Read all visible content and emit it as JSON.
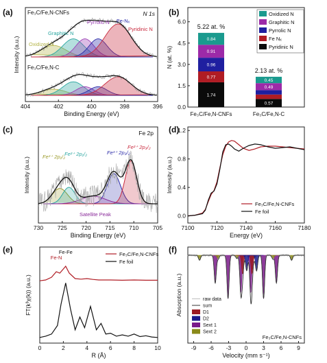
{
  "chart_data": [
    {
      "panel": "(a)",
      "type": "line",
      "xlabel": "Binding Energy (eV)",
      "ylabel": "Intensity (a.u.)",
      "xlim": [
        404,
        396
      ],
      "xticks": [
        "404",
        "402",
        "400",
        "398",
        "396"
      ],
      "annotation": "N 1s",
      "traces": [
        {
          "name": "Fe3C/Fe,N-CNFs",
          "label": "Fe₃C/Fe,N-CNFs",
          "offset": 1.0
        },
        {
          "name": "Fe3C/Fe,N-C",
          "label": "Fe₃C/Fe,N-C",
          "offset": 0.0
        }
      ],
      "components": [
        {
          "name": "Oxidized N",
          "label": "Oxidized N",
          "center": 402.3,
          "color": "#b5b54a"
        },
        {
          "name": "Graphitic N",
          "label": "Graphitic N",
          "center": 401.1,
          "color": "#2aa6a0"
        },
        {
          "name": "Pyrrolic N",
          "label": "Pyrrolic N",
          "center": 400.4,
          "color": "#9b3fb5"
        },
        {
          "name": "Fe-Nx",
          "label": "Fe-Nₓ",
          "center": 399.6,
          "color": "#2b2ba8"
        },
        {
          "name": "Pyridinic N",
          "label": "Pyridinic N",
          "center": 398.4,
          "color": "#c8283c"
        }
      ]
    },
    {
      "panel": "(b)",
      "type": "bar",
      "ylabel": "N (at. %)",
      "ylim": [
        0,
        7
      ],
      "yticks": [
        "0.0",
        "1.5",
        "3.0",
        "4.5",
        "6.0"
      ],
      "categories": [
        "Fe₃C/Fe,N-CNFs",
        "Fe₃C/Fe,N-C"
      ],
      "totals": [
        "5.22 at. %",
        "2.13 at. %"
      ],
      "series": [
        {
          "name": "Pyridinic N",
          "values": [
            1.74,
            0.57
          ],
          "color": "#0a0a0a"
        },
        {
          "name": "Fe Nₓ",
          "values": [
            0.77,
            0.31
          ],
          "color": "#b01c24"
        },
        {
          "name": "Pyrrolic N",
          "values": [
            0.96,
            0.31
          ],
          "color": "#1f1fa0"
        },
        {
          "name": "Graphitic N",
          "values": [
            0.91,
            0.49
          ],
          "color": "#9c2aa8"
        },
        {
          "name": "Oxidized N",
          "values": [
            0.84,
            0.45
          ],
          "color": "#1a9a8e"
        }
      ],
      "legend": [
        "Oxidized N",
        "Graphitic N",
        "Pyrrolic N",
        "Fe Nₓ",
        "Pyridinic N"
      ],
      "legend_position": "top-right"
    },
    {
      "panel": "(c)",
      "type": "line",
      "xlabel": "Binding Energy (eV)",
      "ylabel": "Intensity (a.u.)",
      "xlim": [
        730,
        705
      ],
      "xticks": [
        "730",
        "725",
        "720",
        "715",
        "710",
        "705"
      ],
      "annotation": "Fe 2p",
      "peaks": [
        {
          "label": "Fe³⁺ 2p₁/₂",
          "center": 725.5,
          "color": "#9a9a2a"
        },
        {
          "label": "Fe²⁺ 2p₁/₂",
          "center": 723.6,
          "color": "#2aa6a0"
        },
        {
          "label": "Fe³⁺ 2p₃/₂",
          "center": 714.2,
          "color": "#2b2ba8"
        },
        {
          "label": "Fe²⁺ 2p₃/₂",
          "center": 710.6,
          "color": "#c8283c"
        }
      ],
      "satellite": {
        "label": "Satellite Peak",
        "center": 718.5,
        "color": "#8a2a9a"
      }
    },
    {
      "panel": "(d)",
      "type": "line",
      "xlabel": "Energy (eV)",
      "ylabel": "Intensity (a.u.)",
      "xlim": [
        7100,
        7180
      ],
      "ylim": [
        -0.1,
        1.25
      ],
      "xticks": [
        "7100",
        "7120",
        "7140",
        "7160",
        "7180"
      ],
      "yticks": [
        "0.0",
        "0.4",
        "0.8",
        "1.2"
      ],
      "series": [
        {
          "name": "Fe₃C/Fe,N-CNFs",
          "color": "#b01c24",
          "x": [
            7100,
            7105,
            7110,
            7112,
            7114,
            7116,
            7118,
            7120,
            7122,
            7124,
            7126,
            7128,
            7130,
            7132,
            7135,
            7138,
            7142,
            7146,
            7150,
            7155,
            7160,
            7165,
            7170,
            7175,
            7180
          ],
          "y": [
            0.0,
            0.01,
            0.04,
            0.09,
            0.2,
            0.3,
            0.36,
            0.48,
            0.68,
            0.86,
            0.98,
            1.04,
            1.06,
            1.05,
            1.0,
            0.95,
            0.92,
            0.94,
            0.97,
            0.98,
            0.98,
            0.97,
            0.96,
            0.95,
            0.94
          ]
        },
        {
          "name": "Fe foil",
          "color": "#111111",
          "x": [
            7100,
            7105,
            7110,
            7112,
            7114,
            7116,
            7118,
            7120,
            7122,
            7124,
            7126,
            7128,
            7130,
            7132,
            7135,
            7138,
            7142,
            7146,
            7150,
            7155,
            7160,
            7165,
            7170,
            7175,
            7180
          ],
          "y": [
            0.0,
            0.01,
            0.03,
            0.08,
            0.22,
            0.32,
            0.35,
            0.45,
            0.66,
            0.9,
            1.0,
            1.01,
            0.98,
            0.94,
            0.91,
            0.95,
            0.99,
            1.01,
            1.0,
            0.97,
            0.95,
            0.96,
            0.97,
            0.95,
            0.93
          ]
        }
      ],
      "legend_position": "bottom-right"
    },
    {
      "panel": "(e)",
      "type": "line",
      "xlabel": "R (Å)",
      "ylabel": "FT(k³χ(k)) (a.u.)",
      "xlim": [
        0,
        10
      ],
      "xticks": [
        "0",
        "2",
        "4",
        "6",
        "8",
        "10"
      ],
      "annotations": [
        "Fe-N",
        "Fe-Fe"
      ],
      "series": [
        {
          "name": "Fe₃C/Fe,N-CNFs",
          "color": "#b01c24",
          "x": [
            0,
            0.5,
            1.0,
            1.4,
            1.7,
            2.0,
            2.2,
            2.5,
            3.0,
            3.5,
            4.0,
            4.5,
            5.0,
            6,
            7,
            8,
            9,
            10
          ],
          "y": [
            0.02,
            0.05,
            0.15,
            0.35,
            0.3,
            0.45,
            0.55,
            0.3,
            0.1,
            0.08,
            0.1,
            0.07,
            0.05,
            0.05,
            0.04,
            0.05,
            0.04,
            0.04
          ]
        },
        {
          "name": "Fe foil",
          "color": "#111111",
          "x": [
            0,
            0.5,
            1.0,
            1.5,
            1.8,
            2.2,
            2.6,
            3.0,
            3.4,
            3.8,
            4.3,
            4.8,
            5.2,
            5.6,
            6.0,
            6.5,
            7.0,
            7.5,
            8.0,
            8.5,
            9.0,
            9.5,
            10
          ],
          "y": [
            0.02,
            0.05,
            0.1,
            0.3,
            0.8,
            1.3,
            0.7,
            0.2,
            0.5,
            0.25,
            0.75,
            0.2,
            0.35,
            0.1,
            0.12,
            0.05,
            0.08,
            0.05,
            0.1,
            0.04,
            0.06,
            0.03,
            0.02
          ]
        }
      ],
      "legend_position": "top-right"
    },
    {
      "panel": "(f)",
      "type": "line",
      "xlabel": "Velocity (mm s⁻¹)",
      "ylabel": "Absorption (a.u.)",
      "xlim": [
        -10,
        10
      ],
      "xticks": [
        "-9",
        "-6",
        "-3",
        "0",
        "3",
        "6",
        "9"
      ],
      "annotation": "Fe₃C/Fe,N-CNFs",
      "legend": [
        "raw data",
        "sum",
        "D1",
        "D2",
        "Sext 1",
        "Sext 2"
      ],
      "legend_position": "bottom-left",
      "lines": [
        {
          "name": "Sext 1",
          "color": "#7a1a8a",
          "positions": [
            -5.3,
            -3.1,
            -0.9,
            0.8,
            3.0,
            5.2
          ],
          "depth": [
            0.45,
            0.7,
            0.6,
            0.6,
            0.7,
            0.45
          ]
        },
        {
          "name": "Sext 2",
          "color": "#8a8a1a",
          "positions": [
            -8.0,
            -4.8,
            -1.6,
            1.4,
            4.6,
            7.8
          ],
          "depth": [
            0.08,
            0.06,
            0.05,
            0.05,
            0.06,
            0.08
          ]
        },
        {
          "name": "D1",
          "color": "#9a1a22",
          "positions": [
            -0.6,
            1.0
          ],
          "depth": [
            0.3,
            0.3
          ]
        },
        {
          "name": "D2",
          "color": "#1a1a8a",
          "positions": [
            0.1,
            1.8
          ],
          "depth": [
            0.25,
            0.25
          ]
        }
      ]
    }
  ]
}
